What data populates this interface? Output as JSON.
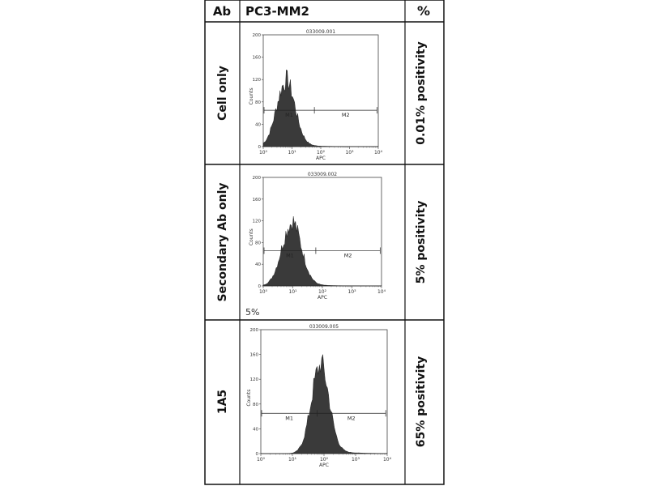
{
  "table": {
    "col_ab": "Ab",
    "col_cells": "PC3-MM2",
    "col_pct": "%"
  },
  "rows": [
    {
      "label": "Cell only",
      "percent": "0.01% positivity",
      "note": ""
    },
    {
      "label": "Secondary Ab only",
      "percent": "5% positivity",
      "note": "5%"
    },
    {
      "label": "1A5",
      "percent": "65% positivity",
      "note": ""
    }
  ],
  "chart_data": [
    {
      "type": "area",
      "title": "033009.001",
      "xlabel": "APC",
      "ylabel": "Counts",
      "x_scale": "log",
      "xlim": [
        1,
        10000
      ],
      "ylim": [
        0,
        200
      ],
      "x_ticks": [
        "10⁰",
        "10¹",
        "10²",
        "10³",
        "10⁴"
      ],
      "y_ticks": [
        "0",
        "40",
        "80",
        "120",
        "160",
        "200"
      ],
      "gates": [
        {
          "name": "M1",
          "range": [
            1,
            60
          ]
        },
        {
          "name": "M2",
          "range": [
            60,
            9000
          ]
        }
      ],
      "gate_y": 65,
      "peak_x": 6,
      "peak_y": 115,
      "spread": 0.32
    },
    {
      "type": "area",
      "title": "033009.002",
      "xlabel": "APC",
      "ylabel": "Counts",
      "x_scale": "log",
      "xlim": [
        1,
        10000
      ],
      "ylim": [
        0,
        200
      ],
      "x_ticks": [
        "10⁰",
        "10¹",
        "10²",
        "10³",
        "10⁴"
      ],
      "y_ticks": [
        "0",
        "40",
        "80",
        "120",
        "160",
        "200"
      ],
      "gates": [
        {
          "name": "M1",
          "range": [
            1,
            60
          ]
        },
        {
          "name": "M2",
          "range": [
            60,
            9000
          ]
        }
      ],
      "gate_y": 65,
      "peak_x": 9,
      "peak_y": 115,
      "spread": 0.33
    },
    {
      "type": "area",
      "title": "033009.005",
      "xlabel": "APC",
      "ylabel": "Counts",
      "x_scale": "log",
      "xlim": [
        1,
        10000
      ],
      "ylim": [
        0,
        200
      ],
      "x_ticks": [
        "10⁰",
        "10¹",
        "10²",
        "10³",
        "10⁴"
      ],
      "y_ticks": [
        "0",
        "40",
        "80",
        "120",
        "160",
        "200"
      ],
      "gates": [
        {
          "name": "M1",
          "range": [
            1,
            60
          ]
        },
        {
          "name": "M2",
          "range": [
            60,
            9000
          ]
        }
      ],
      "gate_y": 65,
      "peak_x": 75,
      "peak_y": 140,
      "spread": 0.28
    }
  ]
}
